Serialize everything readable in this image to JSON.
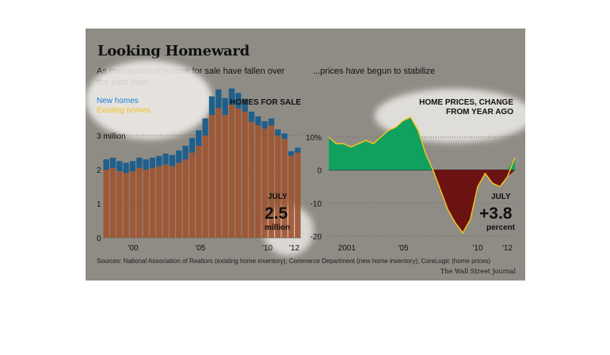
{
  "header": {
    "title": "Looking Homeward",
    "left_subtitle": "As inventories of homes for sale have fallen over the past year...",
    "right_subtitle": "...prices have begun to stabilize"
  },
  "footer": {
    "source": "Sources: National Association of Realtors (existing home inventory); Commerce Department (new home inventory); CoreLogic (home prices)",
    "credit": "The Wall Street Journal"
  },
  "colors": {
    "panel_bg": "#8f8c85",
    "new_homes": "#1f5f8c",
    "existing_homes": "#a0522d",
    "existing_line": "#f4c21d",
    "price_positive": "#10a060",
    "price_negative": "#6b1212",
    "haze": "#f4f2ee"
  },
  "chart_data": [
    {
      "type": "bar",
      "title": "HOMES FOR SALE",
      "legend": [
        "New homes",
        "Existing homes"
      ],
      "legend_placement": "top-left",
      "unit_label": "3 million",
      "yticks": [
        "0",
        "1",
        "2",
        "3 million"
      ],
      "xticks": [
        "'00",
        "'05",
        "'10",
        "'12"
      ],
      "ylim": [
        0,
        4
      ],
      "grid": true,
      "series": [
        {
          "name": "Existing homes",
          "x": [
            1998.0,
            1998.5,
            1999.0,
            1999.5,
            2000.0,
            2000.5,
            2001.0,
            2001.5,
            2002.0,
            2002.5,
            2003.0,
            2003.5,
            2004.0,
            2004.5,
            2005.0,
            2005.5,
            2006.0,
            2006.5,
            2007.0,
            2007.5,
            2008.0,
            2008.5,
            2009.0,
            2009.5,
            2010.0,
            2010.5,
            2011.0,
            2011.5,
            2012.0,
            2012.5
          ],
          "values": [
            2.0,
            2.05,
            1.95,
            1.9,
            1.95,
            2.05,
            2.0,
            2.05,
            2.1,
            2.15,
            2.1,
            2.2,
            2.3,
            2.5,
            2.7,
            3.0,
            3.6,
            3.8,
            3.6,
            3.9,
            3.8,
            3.7,
            3.4,
            3.3,
            3.2,
            3.3,
            3.0,
            2.9,
            2.4,
            2.5
          ]
        },
        {
          "name": "New homes",
          "x": [
            1998.0,
            1998.5,
            1999.0,
            1999.5,
            2000.0,
            2000.5,
            2001.0,
            2001.5,
            2002.0,
            2002.5,
            2003.0,
            2003.5,
            2004.0,
            2004.5,
            2005.0,
            2005.5,
            2006.0,
            2006.5,
            2007.0,
            2007.5,
            2008.0,
            2008.5,
            2009.0,
            2009.5,
            2010.0,
            2010.5,
            2011.0,
            2011.5,
            2012.0,
            2012.5
          ],
          "values": [
            0.3,
            0.3,
            0.3,
            0.3,
            0.3,
            0.3,
            0.3,
            0.3,
            0.3,
            0.32,
            0.33,
            0.36,
            0.4,
            0.43,
            0.45,
            0.5,
            0.55,
            0.55,
            0.5,
            0.48,
            0.45,
            0.38,
            0.3,
            0.26,
            0.22,
            0.2,
            0.18,
            0.16,
            0.14,
            0.14
          ]
        }
      ],
      "annotation": {
        "label": "JULY",
        "value": "2.5",
        "unit": "million"
      }
    },
    {
      "type": "area",
      "title": "HOME PRICES, CHANGE FROM YEAR AGO",
      "yticks": [
        "10%",
        "0",
        "-10",
        "-20"
      ],
      "xticks": [
        "2001",
        "'05",
        "'10",
        "'12"
      ],
      "ylim": [
        -20,
        16
      ],
      "grid": true,
      "series": [
        {
          "name": "",
          "x": [
            2000.0,
            2000.5,
            2001.0,
            2001.5,
            2002.0,
            2002.5,
            2003.0,
            2003.5,
            2004.0,
            2004.5,
            2005.0,
            2005.5,
            2006.0,
            2006.5,
            2007.0,
            2007.5,
            2008.0,
            2008.5,
            2009.0,
            2009.5,
            2010.0,
            2010.5,
            2011.0,
            2011.5,
            2012.0,
            2012.5
          ],
          "values": [
            10,
            8,
            8,
            7,
            8,
            9,
            8,
            10,
            12,
            13,
            15,
            16,
            12,
            5,
            0,
            -6,
            -12,
            -16,
            -19,
            -15,
            -5,
            -1,
            -4,
            -5,
            -2,
            3.8
          ]
        }
      ],
      "annotation": {
        "label": "JULY",
        "value": "+3.8",
        "unit": "percent"
      }
    }
  ]
}
